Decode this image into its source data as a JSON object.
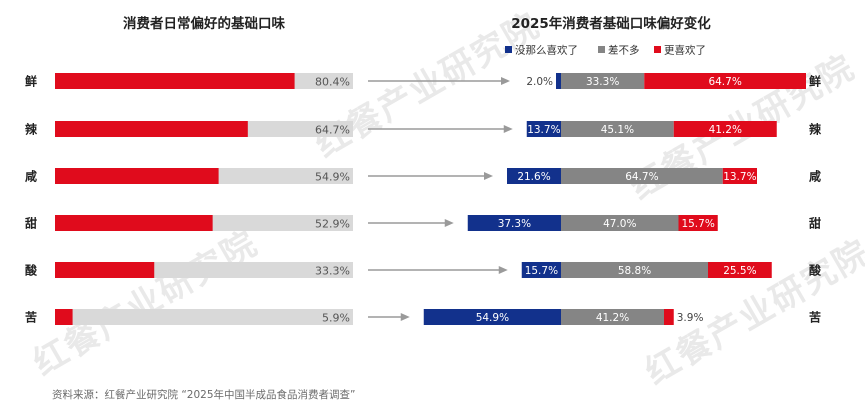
{
  "watermark": {
    "text": "红餐产业研究院"
  },
  "source": "资料来源：红餐产业研究院 “2025年中国半成品食品消费者调查”",
  "chart_data": [
    {
      "type": "bar",
      "title": "消费者日常偏好的基础口味",
      "categories": [
        "鲜",
        "辣",
        "咸",
        "甜",
        "酸",
        "苦"
      ],
      "values": [
        80.4,
        64.7,
        54.9,
        52.9,
        33.3,
        5.9
      ],
      "value_labels": [
        "80.4%",
        "64.7%",
        "54.9%",
        "52.9%",
        "33.3%",
        "5.9%"
      ],
      "ylim": [
        0,
        100
      ],
      "bar_color": "#e00b1c",
      "track_color": "#d9d9d9"
    },
    {
      "type": "bar",
      "stacked": true,
      "title": "2025年消费者基础口味偏好变化",
      "categories": [
        "鲜",
        "辣",
        "咸",
        "甜",
        "酸",
        "苦"
      ],
      "legend_position": "top-right",
      "series": [
        {
          "name": "没那么喜欢了",
          "color": "#12318c",
          "values": [
            2.0,
            13.7,
            21.6,
            37.3,
            15.7,
            54.9
          ],
          "labels": [
            "2.0%",
            "13.7%",
            "21.6%",
            "37.3%",
            "15.7%",
            "54.9%"
          ]
        },
        {
          "name": "差不多",
          "color": "#858585",
          "values": [
            33.3,
            45.1,
            64.7,
            47.0,
            58.8,
            41.2
          ],
          "labels": [
            "33.3%",
            "45.1%",
            "64.7%",
            "47.0%",
            "58.8%",
            "41.2%"
          ]
        },
        {
          "name": "更喜欢了",
          "color": "#e00b1c",
          "values": [
            64.7,
            41.2,
            13.7,
            15.7,
            25.5,
            3.9
          ],
          "labels": [
            "64.7%",
            "41.2%",
            "13.7%",
            "15.7%",
            "25.5%",
            "3.9%"
          ]
        }
      ]
    }
  ]
}
